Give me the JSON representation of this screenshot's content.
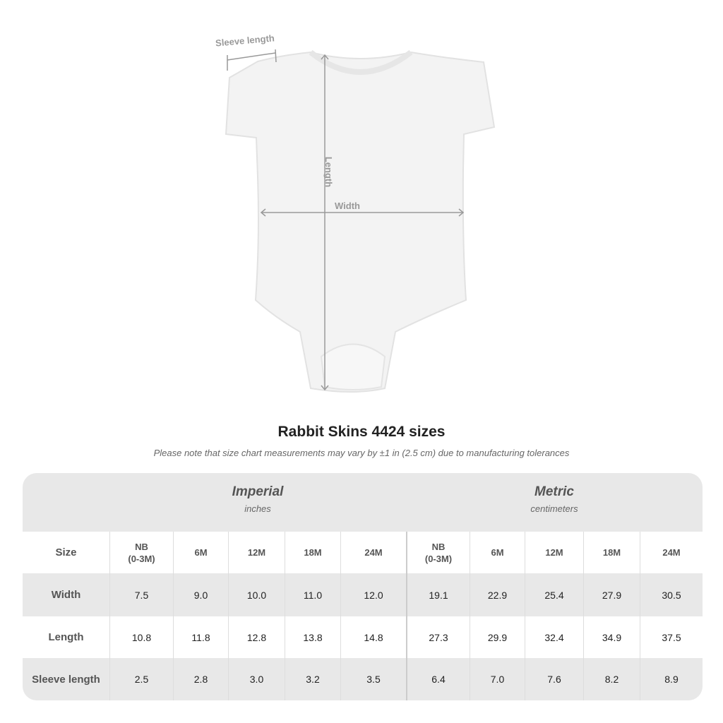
{
  "diagram": {
    "sleeve_label": "Sleeve length",
    "length_label": "Length",
    "width_label": "Width"
  },
  "title": "Rabbit Skins 4424 sizes",
  "note": "Please note that size chart measurements may vary by ±1 in (2.5 cm) due to manufacturing tolerances",
  "table": {
    "groups": [
      {
        "name": "Imperial",
        "unit": "inches"
      },
      {
        "name": "Metric",
        "unit": "centimeters"
      }
    ],
    "size_label": "Size",
    "sizes": [
      "NB\n(0-3M)",
      "6M",
      "12M",
      "18M",
      "24M",
      "NB\n(0-3M)",
      "6M",
      "12M",
      "18M",
      "24M"
    ],
    "rows": [
      {
        "label": "Width",
        "values": [
          "7.5",
          "9.0",
          "10.0",
          "11.0",
          "12.0",
          "19.1",
          "22.9",
          "25.4",
          "27.9",
          "30.5"
        ]
      },
      {
        "label": "Length",
        "values": [
          "10.8",
          "11.8",
          "12.8",
          "13.8",
          "14.8",
          "27.3",
          "29.9",
          "32.4",
          "34.9",
          "37.5"
        ]
      },
      {
        "label": "Sleeve length",
        "values": [
          "2.5",
          "2.8",
          "3.0",
          "3.2",
          "3.5",
          "6.4",
          "7.0",
          "7.6",
          "8.2",
          "8.9"
        ]
      }
    ]
  }
}
